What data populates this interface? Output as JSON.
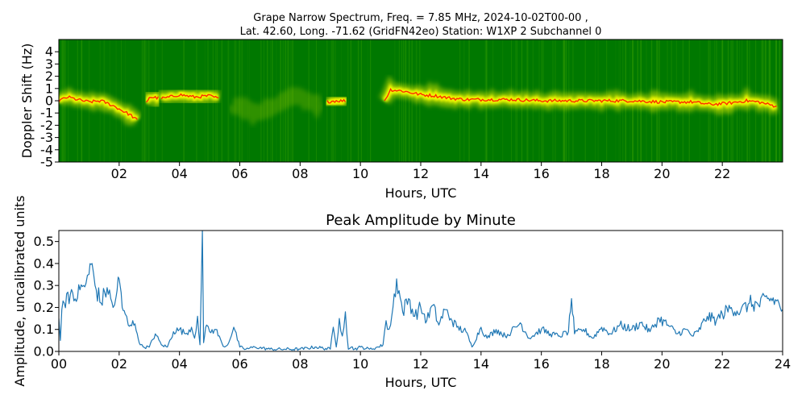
{
  "figure": {
    "title_line1": "Grape Narrow Spectrum, Freq. = 7.85 MHz, 2024-10-02T00-00 ,",
    "title_line2": "Lat.  42.60, Long. -71.62 (GridFN42eo) Station: W1XP 2 Subchannel 0"
  },
  "chart_data": [
    {
      "type": "heatmap",
      "title": "",
      "xlabel": "Hours, UTC",
      "ylabel": "Doppler Shift (Hz)",
      "xlim": [
        0,
        24
      ],
      "ylim": [
        -5,
        5
      ],
      "x_ticks": [
        "02",
        "04",
        "06",
        "08",
        "10",
        "12",
        "14",
        "16",
        "18",
        "20",
        "22"
      ],
      "x_tick_values": [
        2,
        4,
        6,
        8,
        10,
        12,
        14,
        16,
        18,
        20,
        22
      ],
      "y_ticks": [
        "4",
        "3",
        "2",
        "1",
        "0",
        "-1",
        "-2",
        "-3",
        "-4",
        "-5"
      ],
      "y_tick_values": [
        4,
        3,
        2,
        1,
        0,
        -1,
        -2,
        -3,
        -4,
        -5
      ],
      "colors": {
        "background": "#007800",
        "noise": "#2f9a00",
        "mid": "#d8e800",
        "high": "#ffff00",
        "peak": "#ff2000"
      },
      "trace": {
        "name": "",
        "x": [
          0.0,
          0.3,
          0.6,
          1.0,
          1.4,
          1.8,
          2.1,
          2.4,
          2.6,
          3.0,
          3.5,
          4.0,
          4.5,
          5.0,
          5.4,
          6.0,
          6.6,
          7.2,
          7.8,
          8.4,
          9.2,
          9.6,
          10.0,
          10.8,
          11.0,
          11.4,
          12.0,
          12.5,
          13.0,
          13.5,
          14.0,
          15.0,
          16.0,
          17.0,
          18.0,
          19.0,
          20.0,
          21.0,
          21.6,
          22.2,
          22.8,
          23.2,
          23.7
        ],
        "y": [
          0.0,
          0.3,
          0.1,
          -0.1,
          0.0,
          -0.4,
          -0.8,
          -1.2,
          -1.6,
          0.3,
          0.2,
          0.5,
          0.3,
          0.4,
          0.1,
          -0.5,
          -1.0,
          -0.4,
          0.5,
          -0.2,
          0.0,
          0.0,
          -0.3,
          0.0,
          0.9,
          0.8,
          0.5,
          0.4,
          0.2,
          0.1,
          0.1,
          0.1,
          0.0,
          0.0,
          0.0,
          0.0,
          -0.1,
          -0.1,
          -0.3,
          -0.2,
          0.0,
          -0.1,
          -0.4
        ],
        "present": [
          [
            0.0,
            2.6
          ],
          [
            2.9,
            3.3
          ],
          [
            3.4,
            5.3
          ],
          [
            8.9,
            9.5
          ],
          [
            10.8,
            23.8
          ]
        ],
        "faint_present": [
          [
            5.8,
            8.6
          ]
        ]
      }
    },
    {
      "type": "line",
      "title": "Peak Amplitude by Minute",
      "xlabel": "Hours, UTC",
      "ylabel": "Amplitude, uncalibrated units",
      "xlim": [
        0,
        24
      ],
      "ylim": [
        0,
        0.55
      ],
      "x_ticks": [
        "00",
        "02",
        "04",
        "06",
        "08",
        "10",
        "12",
        "14",
        "16",
        "18",
        "20",
        "22",
        "24"
      ],
      "x_tick_values": [
        0,
        2,
        4,
        6,
        8,
        10,
        12,
        14,
        16,
        18,
        20,
        22,
        24
      ],
      "y_ticks": [
        "0.0",
        "0.1",
        "0.2",
        "0.3",
        "0.4",
        "0.5"
      ],
      "y_tick_values": [
        0.0,
        0.1,
        0.2,
        0.3,
        0.4,
        0.5
      ],
      "line_color": "#1f77b4",
      "series": [
        {
          "name": "",
          "x": [
            0.0,
            0.05,
            0.1,
            0.3,
            0.5,
            0.7,
            0.9,
            1.0,
            1.1,
            1.2,
            1.4,
            1.6,
            1.8,
            1.9,
            2.0,
            2.1,
            2.2,
            2.3,
            2.45,
            2.6,
            2.7,
            2.8,
            3.0,
            3.2,
            3.4,
            3.6,
            3.8,
            4.0,
            4.2,
            4.4,
            4.5,
            4.6,
            4.68,
            4.72,
            4.76,
            4.8,
            4.9,
            5.0,
            5.2,
            5.4,
            5.5,
            5.6,
            5.8,
            6.0,
            6.2,
            6.5,
            7.0,
            7.5,
            8.0,
            8.5,
            9.0,
            9.1,
            9.2,
            9.3,
            9.4,
            9.5,
            9.6,
            9.7,
            9.8,
            10.0,
            10.3,
            10.6,
            10.75,
            10.8,
            10.85,
            10.9,
            11.0,
            11.2,
            11.4,
            11.6,
            11.8,
            12.0,
            12.2,
            12.4,
            12.6,
            12.8,
            13.0,
            13.2,
            13.5,
            13.7,
            14.0,
            14.2,
            14.5,
            14.8,
            15.0,
            15.3,
            15.6,
            16.0,
            16.3,
            16.6,
            16.9,
            17.0,
            17.1,
            17.4,
            17.7,
            18.0,
            18.3,
            18.6,
            19.0,
            19.3,
            19.6,
            19.9,
            20.2,
            20.5,
            20.8,
            21.0,
            21.2,
            21.5,
            21.8,
            22.0,
            22.3,
            22.6,
            22.9,
            23.2,
            23.5,
            23.8,
            24.0
          ],
          "y": [
            0.15,
            0.05,
            0.19,
            0.27,
            0.23,
            0.28,
            0.31,
            0.35,
            0.4,
            0.3,
            0.22,
            0.29,
            0.2,
            0.25,
            0.33,
            0.2,
            0.17,
            0.12,
            0.14,
            0.08,
            0.03,
            0.02,
            0.02,
            0.08,
            0.03,
            0.02,
            0.09,
            0.1,
            0.08,
            0.11,
            0.06,
            0.16,
            0.03,
            0.28,
            0.55,
            0.04,
            0.12,
            0.09,
            0.1,
            0.04,
            0.02,
            0.03,
            0.11,
            0.02,
            0.01,
            0.02,
            0.01,
            0.01,
            0.01,
            0.02,
            0.01,
            0.11,
            0.02,
            0.15,
            0.07,
            0.18,
            0.01,
            0.02,
            0.01,
            0.02,
            0.01,
            0.02,
            0.03,
            0.09,
            0.14,
            0.1,
            0.12,
            0.33,
            0.18,
            0.24,
            0.16,
            0.2,
            0.14,
            0.21,
            0.12,
            0.19,
            0.15,
            0.11,
            0.09,
            0.02,
            0.11,
            0.06,
            0.1,
            0.07,
            0.09,
            0.13,
            0.06,
            0.1,
            0.08,
            0.07,
            0.09,
            0.24,
            0.08,
            0.1,
            0.06,
            0.11,
            0.08,
            0.12,
            0.1,
            0.13,
            0.09,
            0.15,
            0.12,
            0.08,
            0.1,
            0.07,
            0.09,
            0.16,
            0.14,
            0.17,
            0.2,
            0.18,
            0.22,
            0.21,
            0.24,
            0.23,
            0.19
          ]
        }
      ]
    }
  ]
}
